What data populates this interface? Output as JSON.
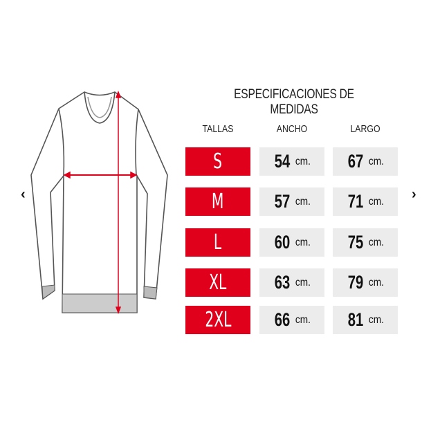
{
  "title": "ESPECIFICACIONES DE MEDIDAS",
  "headers": {
    "size": "TALLAS",
    "width": "ANCHO",
    "length": "LARGO"
  },
  "unit": "cm.",
  "rows": [
    {
      "size": "S",
      "width": "54",
      "length": "67"
    },
    {
      "size": "M",
      "width": "57",
      "length": "71"
    },
    {
      "size": "L",
      "width": "60",
      "length": "75"
    },
    {
      "size": "XL",
      "width": "63",
      "length": "79"
    },
    {
      "size": "2XL",
      "width": "66",
      "length": "81"
    }
  ],
  "colors": {
    "accent": "#e0001b",
    "cell": "#ececec"
  },
  "nav": {
    "prev": "‹",
    "next": "›"
  }
}
